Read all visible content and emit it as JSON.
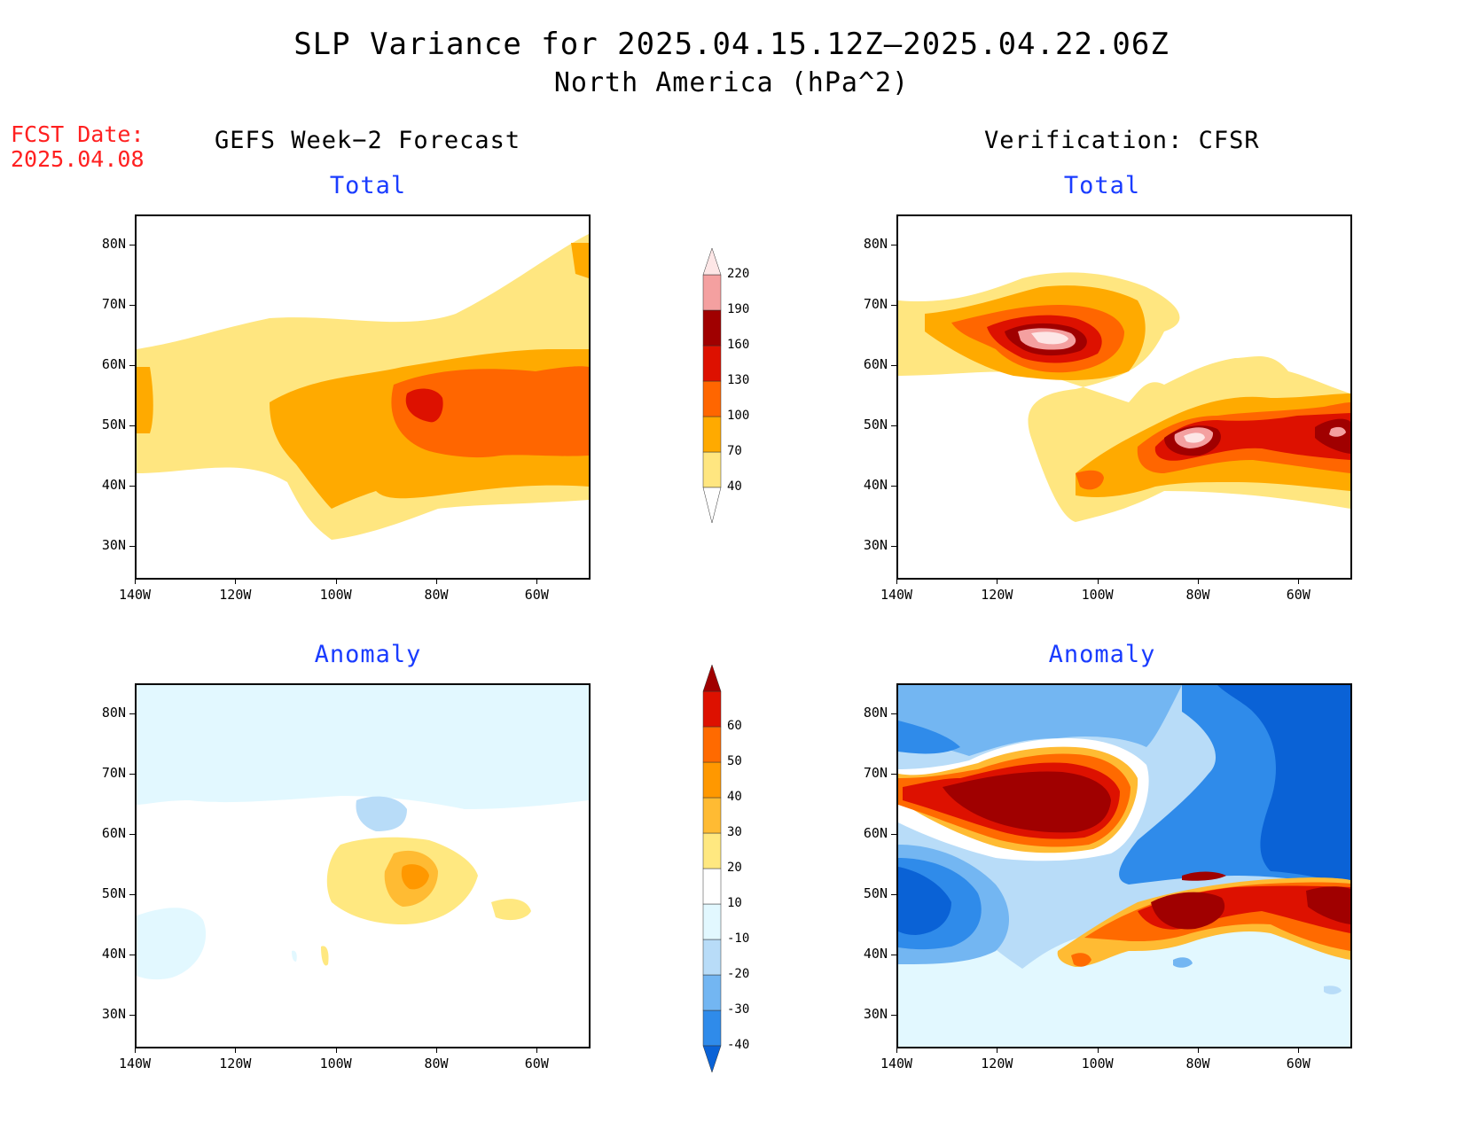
{
  "title": "SLP Variance for 2025.04.15.12Z–2025.04.22.06Z",
  "subtitle": "North America (hPa^2)",
  "fcst_date_label": "FCST Date:",
  "fcst_date": "2025.04.08",
  "left_column_title": "GEFS Week−2 Forecast",
  "right_column_title": "Verification: CFSR",
  "panels": {
    "top_left": {
      "title": "Total"
    },
    "top_right": {
      "title": "Total"
    },
    "bottom_left": {
      "title": "Anomaly"
    },
    "bottom_right": {
      "title": "Anomaly"
    }
  },
  "axes": {
    "lat_labels": [
      "80N",
      "70N",
      "60N",
      "50N",
      "40N",
      "30N"
    ],
    "lon_labels": [
      "140W",
      "120W",
      "100W",
      "80W",
      "60W"
    ]
  },
  "colorbars": {
    "total": {
      "levels": [
        "40",
        "70",
        "100",
        "130",
        "160",
        "190",
        "220"
      ],
      "colors": [
        "#ffe680",
        "#ffaa00",
        "#ff6600",
        "#dd1100",
        "#a00000",
        "#f4a0a0",
        "#fde6e6"
      ]
    },
    "anomaly": {
      "levels": [
        "-40",
        "-30",
        "-20",
        "-10",
        "10",
        "20",
        "30",
        "40",
        "50",
        "60"
      ],
      "colors": [
        "#0a62d6",
        "#2f8bea",
        "#73b6f2",
        "#b8dcf8",
        "#e2f8ff",
        "#ffffff",
        "#ffe880",
        "#ffbb33",
        "#ff9800",
        "#ff6a00",
        "#dd1100",
        "#a00000"
      ]
    }
  },
  "chart_data": [
    {
      "type": "heatmap",
      "title": "Total",
      "source": "GEFS Week-2 Forecast",
      "units": "hPa^2",
      "xlim": [
        -140,
        -50
      ],
      "ylim": [
        25,
        85
      ],
      "features": [
        {
          "desc": "broad variance maximum over Great Lakes / Hudson Bay region",
          "lon": -80,
          "lat": 51,
          "peak": 130
        },
        {
          "desc": "secondary band along Pacific coast",
          "lon": -140,
          "lat": 50,
          "peak": 70
        }
      ]
    },
    {
      "type": "heatmap",
      "title": "Total",
      "source": "Verification: CFSR",
      "units": "hPa^2",
      "xlim": [
        -140,
        -50
      ],
      "ylim": [
        25,
        85
      ],
      "features": [
        {
          "desc": "maximum over Northwest Territories",
          "lon": -108,
          "lat": 62,
          "peak": 220
        },
        {
          "desc": "maximum over Great Lakes",
          "lon": -78,
          "lat": 47,
          "peak": 220
        },
        {
          "desc": "maximum off Newfoundland",
          "lon": -52,
          "lat": 48,
          "peak": 220
        }
      ]
    },
    {
      "type": "heatmap",
      "title": "Anomaly",
      "source": "GEFS Week-2 Forecast",
      "units": "hPa^2",
      "xlim": [
        -140,
        -50
      ],
      "ylim": [
        25,
        85
      ],
      "features": [
        {
          "desc": "positive anomaly near Great Lakes",
          "lon": -80,
          "lat": 51,
          "peak": 30
        },
        {
          "desc": "weak negative anomaly over Hudson Bay",
          "lon": -85,
          "lat": 63,
          "peak": -20
        }
      ]
    },
    {
      "type": "heatmap",
      "title": "Anomaly",
      "source": "Verification: CFSR",
      "units": "hPa^2",
      "xlim": [
        -140,
        -50
      ],
      "ylim": [
        25,
        85
      ],
      "features": [
        {
          "desc": "strong positive anomaly over northern Canada",
          "lon": -112,
          "lat": 65,
          "peak": 60
        },
        {
          "desc": "strong positive anomaly over Great Lakes to Atlantic",
          "lon": -78,
          "lat": 46,
          "peak": 60
        },
        {
          "desc": "strong negative anomaly over North Atlantic / Greenland",
          "lon": -60,
          "lat": 65,
          "peak": -40
        },
        {
          "desc": "negative anomaly over NE Pacific",
          "lon": -135,
          "lat": 50,
          "peak": -40
        }
      ]
    }
  ]
}
